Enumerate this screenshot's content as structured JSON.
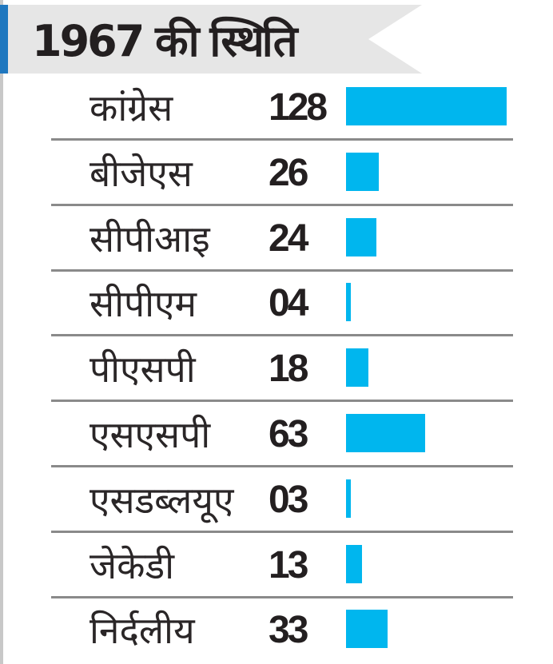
{
  "header": {
    "title": "1967 की स्थिति"
  },
  "colors": {
    "bar": "#00b6ee",
    "accent": "#1f77bf",
    "header_bg": "#e6e6e6",
    "row_line": "#8a8a8a"
  },
  "chart_data": {
    "type": "bar",
    "title": "1967 की स्थिति",
    "orientation": "horizontal",
    "categories": [
      "कांग्रेस",
      "बीजेएस",
      "सीपीआइ",
      "सीपीएम",
      "पीएसपी",
      "एसएसपी",
      "एसडब्लयूए",
      "जेकेडी",
      "निर्दलीय"
    ],
    "value_labels": [
      "128",
      "26",
      "24",
      "04",
      "18",
      "63",
      "03",
      "13",
      "33"
    ],
    "values": [
      128,
      26,
      24,
      4,
      18,
      63,
      3,
      13,
      33
    ],
    "xlim": [
      0,
      128
    ],
    "grid": false,
    "legend": "none"
  }
}
